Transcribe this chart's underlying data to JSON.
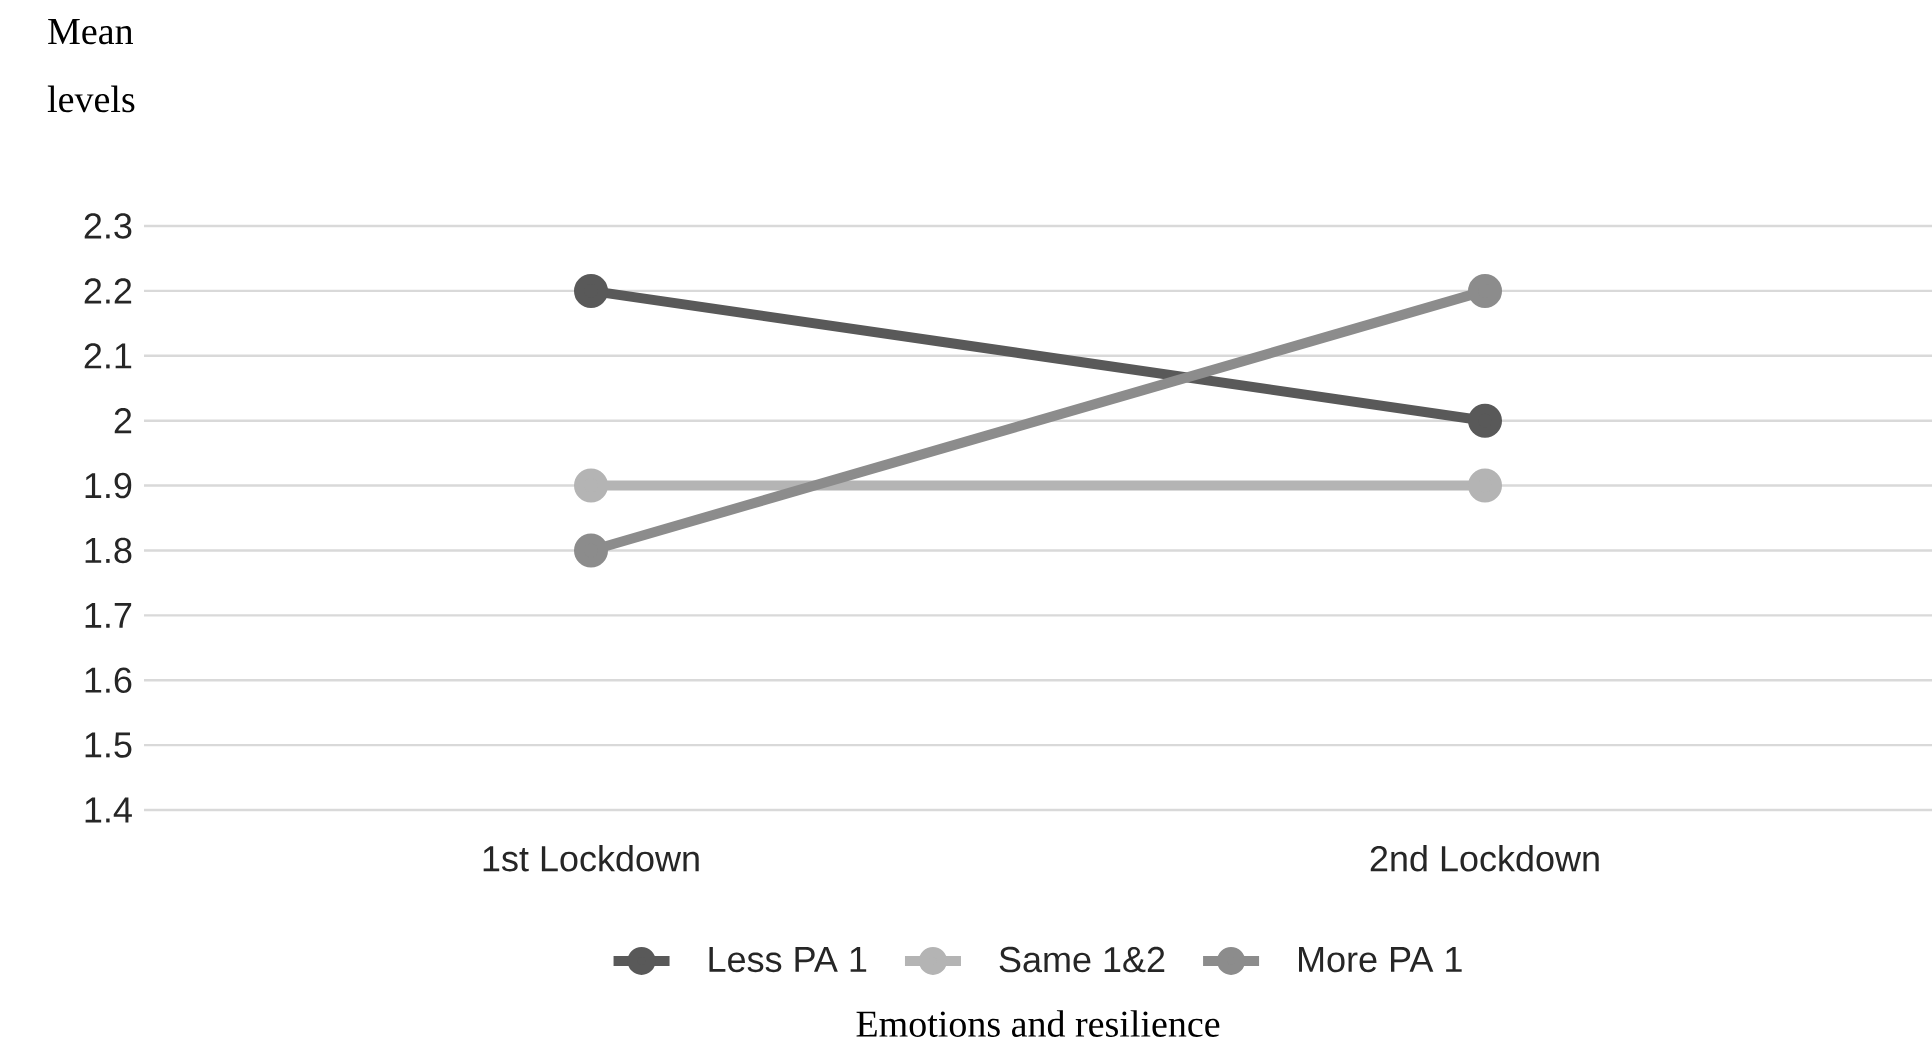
{
  "chart_data": {
    "type": "line",
    "ylabel": "Mean levels",
    "xlabel": "Emotions and resilience",
    "categories": [
      "1st Lockdown",
      "2nd Lockdown"
    ],
    "series": [
      {
        "name": "Less PA 1",
        "color": "#595959",
        "values": [
          2.2,
          2.0
        ]
      },
      {
        "name": "Same 1&2",
        "color": "#b4b4b4",
        "values": [
          1.9,
          1.9
        ]
      },
      {
        "name": "More PA 1",
        "color": "#8c8c8c",
        "values": [
          1.8,
          2.2
        ]
      }
    ],
    "ylim": [
      1.4,
      2.3
    ],
    "yticks": [
      1.4,
      1.5,
      1.6,
      1.7,
      1.8,
      1.9,
      2,
      2.1,
      2.2,
      2.3
    ],
    "grid": "y",
    "legend": "bottom",
    "marker": "circle",
    "line_style": "solid"
  }
}
